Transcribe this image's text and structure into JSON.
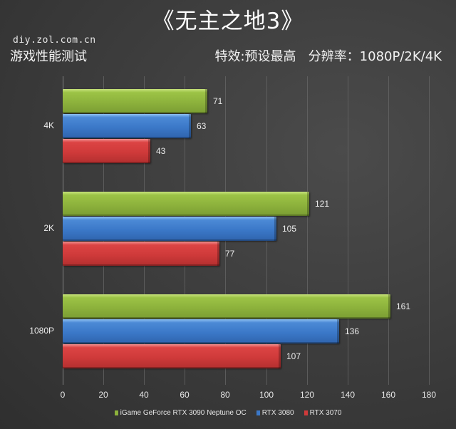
{
  "header": {
    "title": "《无主之地3》",
    "site": "diy.zol.com.cn",
    "subtitle_left": "游戏性能测试",
    "subtitle_right": "特效:预设最高   分辨率：1080P/2K/4K"
  },
  "colors": {
    "series_green": "#8db23c",
    "series_blue": "#3b78c8",
    "series_red": "#cf3a3a",
    "background": "#3e3e3e"
  },
  "chart_data": {
    "type": "bar",
    "orientation": "horizontal",
    "title": "《无主之地3》",
    "subtitle": "游戏性能测试 — 特效:预设最高 分辨率：1080P/2K/4K",
    "categories": [
      "4K",
      "2K",
      "1080P"
    ],
    "series": [
      {
        "name": "iGame GeForce RTX 3090 Neptune OC",
        "color": "#8db23c",
        "values": [
          71,
          121,
          161
        ]
      },
      {
        "name": "RTX 3080",
        "color": "#3b78c8",
        "values": [
          63,
          105,
          136
        ]
      },
      {
        "name": "RTX 3070",
        "color": "#cf3a3a",
        "values": [
          43,
          77,
          107
        ]
      }
    ],
    "xlabel": "",
    "ylabel": "",
    "xlim": [
      0,
      180
    ],
    "xticks": [
      "0",
      "20",
      "40",
      "60",
      "80",
      "100",
      "120",
      "140",
      "160",
      "180"
    ],
    "grid": "vertical",
    "legend_position": "bottom",
    "data_labels": true
  },
  "axis": {
    "ticks": [
      "0",
      "20",
      "40",
      "60",
      "80",
      "100",
      "120",
      "140",
      "160",
      "180"
    ]
  },
  "groups": [
    {
      "label": "4K",
      "values": [
        "71",
        "63",
        "43"
      ]
    },
    {
      "label": "2K",
      "values": [
        "121",
        "105",
        "77"
      ]
    },
    {
      "label": "1080P",
      "values": [
        "161",
        "136",
        "107"
      ]
    }
  ],
  "legend": [
    {
      "label": "iGame GeForce RTX 3090 Neptune OC",
      "color": "#8db23c"
    },
    {
      "label": "RTX 3080",
      "color": "#3b78c8"
    },
    {
      "label": "RTX 3070",
      "color": "#cf3a3a"
    }
  ]
}
